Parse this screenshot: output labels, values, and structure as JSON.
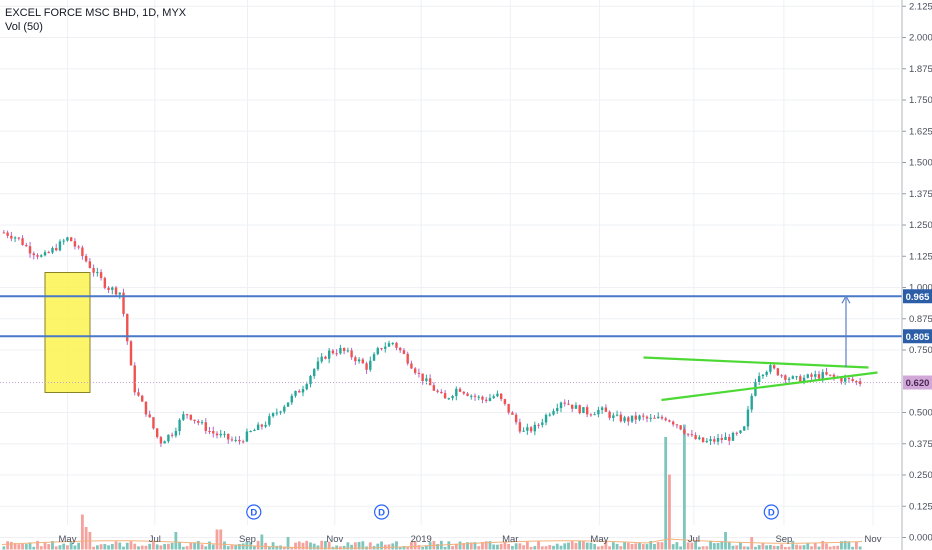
{
  "header": {
    "title": "EXCEL FORCE MSC BHD, 1D, MYX",
    "indicator": "Vol (50)"
  },
  "colors": {
    "up": "#26a69a",
    "down": "#ef5350",
    "wick_up": "#26a69a",
    "wick_down": "#b565c6",
    "level_line": "#4a79c8",
    "triangle": "#4cd934",
    "highlight_fill": "#fbf24f",
    "highlight_stroke": "#8a8226",
    "vol_up": "#7ec6bd",
    "vol_down": "#f5a19c",
    "vol_ma": "#f2b27a",
    "price_badge": "#d1a7d8",
    "grid": "#eef0f3"
  },
  "chart_data": {
    "type": "candlestick",
    "symbol": "EXCEL FORCE MSC BHD",
    "interval": "1D",
    "exchange": "MYX",
    "x_tick_labels": [
      "May",
      "Jul",
      "Sep",
      "Nov",
      "2019",
      "Mar",
      "May",
      "Jul",
      "Sep",
      "Nov"
    ],
    "y_tick_labels": [
      "2.125",
      "2.000",
      "1.875",
      "1.750",
      "1.625",
      "1.500",
      "1.375",
      "1.250",
      "1.125",
      "1.000",
      "0.875",
      "0.750",
      "0.500",
      "0.375",
      "0.250",
      "0.125",
      "0.000"
    ],
    "y_ticks": [
      2.125,
      2.0,
      1.875,
      1.75,
      1.625,
      1.5,
      1.375,
      1.25,
      1.125,
      1.0,
      0.875,
      0.75,
      0.5,
      0.375,
      0.25,
      0.125,
      0.0
    ],
    "ylim": [
      -0.05,
      2.15
    ],
    "grid": true,
    "price_path": [
      1.22,
      1.2,
      1.15,
      1.12,
      1.16,
      1.2,
      1.13,
      1.06,
      1.0,
      0.98,
      0.6,
      0.5,
      0.38,
      0.42,
      0.5,
      0.46,
      0.42,
      0.4,
      0.38,
      0.42,
      0.45,
      0.5,
      0.55,
      0.6,
      0.68,
      0.74,
      0.75,
      0.72,
      0.68,
      0.76,
      0.78,
      0.72,
      0.65,
      0.6,
      0.55,
      0.6,
      0.57,
      0.55,
      0.57,
      0.5,
      0.42,
      0.44,
      0.5,
      0.55,
      0.52,
      0.5,
      0.51,
      0.48,
      0.47,
      0.48,
      0.47,
      0.48,
      0.45,
      0.4,
      0.38,
      0.39,
      0.4,
      0.42,
      0.65,
      0.68,
      0.65,
      0.63,
      0.64,
      0.65,
      0.64,
      0.63,
      0.62
    ],
    "horizontal_levels": [
      {
        "value": 0.965,
        "label": "0.965"
      },
      {
        "value": 0.805,
        "label": "0.805"
      }
    ],
    "last_price": {
      "value": 0.62,
      "label": "0.620"
    },
    "symmetrical_triangle": {
      "upper": [
        [
          0.715,
          0.72
        ],
        [
          0.965,
          0.68
        ]
      ],
      "lower": [
        [
          0.735,
          0.55
        ],
        [
          0.975,
          0.66
        ]
      ]
    },
    "target_arrow": {
      "from": 0.68,
      "to": 0.965
    },
    "highlight_box": {
      "x_range": [
        0.05,
        0.1
      ],
      "y_range": [
        0.58,
        1.06
      ]
    },
    "volume": {
      "name": "Vol (50)",
      "peaks": [
        [
          0.09,
          0.14
        ],
        [
          0.093,
          0.09
        ],
        [
          0.1,
          0.07
        ],
        [
          0.2,
          0.07
        ],
        [
          0.25,
          0.08
        ],
        [
          0.3,
          0.06
        ],
        [
          0.33,
          0.05
        ],
        [
          0.77,
          0.45
        ],
        [
          0.775,
          0.3
        ],
        [
          0.79,
          0.5
        ],
        [
          0.84,
          0.07
        ],
        [
          0.87,
          0.05
        ]
      ]
    },
    "dividend_markers": [
      {
        "x": 0.282,
        "label": "D"
      },
      {
        "x": 0.424,
        "label": "D"
      },
      {
        "x": 0.857,
        "label": "D"
      }
    ]
  }
}
